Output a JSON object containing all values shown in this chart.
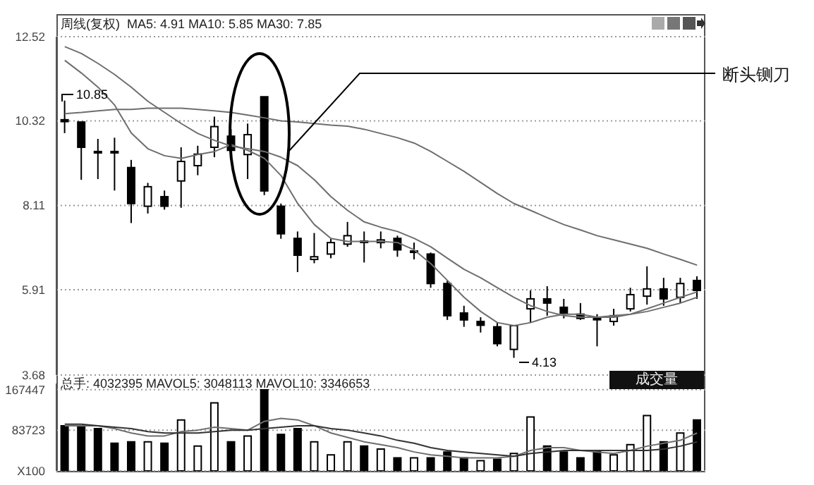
{
  "chart_data": [
    {
      "type": "candlestick",
      "title": "周线(复权)  MA5: 4.91 MA10: 5.85 MA30: 7.85",
      "categories": [
        null,
        null,
        null,
        null,
        null,
        null,
        null,
        null,
        null,
        null,
        null,
        null,
        null,
        null,
        null,
        null,
        null,
        null,
        null,
        null,
        null,
        null,
        null,
        null,
        null,
        null,
        null,
        null,
        null,
        null,
        null,
        null,
        null,
        null,
        null,
        null,
        null,
        null,
        null
      ],
      "ohlc": [
        [
          10.35,
          10.85,
          10.0,
          10.3
        ],
        [
          10.29,
          10.29,
          8.78,
          9.63
        ],
        [
          9.52,
          9.85,
          8.8,
          9.52
        ],
        [
          9.52,
          9.88,
          8.5,
          9.5
        ],
        [
          9.1,
          9.3,
          7.65,
          8.16
        ],
        [
          8.09,
          8.7,
          7.9,
          8.6
        ],
        [
          8.34,
          8.5,
          8.0,
          8.09
        ],
        [
          8.75,
          9.63,
          8.05,
          9.26
        ],
        [
          9.15,
          9.67,
          8.9,
          9.45
        ],
        [
          9.63,
          10.43,
          9.37,
          10.17
        ],
        [
          9.92,
          10.1,
          9.37,
          9.55
        ],
        [
          9.44,
          10.25,
          8.8,
          9.96
        ],
        [
          10.95,
          10.95,
          8.38,
          8.49
        ],
        [
          8.09,
          8.16,
          7.24,
          7.37
        ],
        [
          7.25,
          7.43,
          6.37,
          6.81
        ],
        [
          6.7,
          7.39,
          6.6,
          6.77
        ],
        [
          6.84,
          7.25,
          6.73,
          7.14
        ],
        [
          7.1,
          7.68,
          7.03,
          7.32
        ],
        [
          7.18,
          7.43,
          6.62,
          7.16
        ],
        [
          7.14,
          7.43,
          6.99,
          7.21
        ],
        [
          7.25,
          7.32,
          6.77,
          6.95
        ],
        [
          6.92,
          7.14,
          6.7,
          6.9
        ],
        [
          6.84,
          6.88,
          5.96,
          6.07
        ],
        [
          6.07,
          6.15,
          5.12,
          5.23
        ],
        [
          5.3,
          5.49,
          4.94,
          5.12
        ],
        [
          5.08,
          5.19,
          4.79,
          4.98
        ],
        [
          4.94,
          5.05,
          4.43,
          4.5
        ],
        [
          4.35,
          4.97,
          4.13,
          4.97
        ],
        [
          5.41,
          5.89,
          5.05,
          5.67
        ],
        [
          5.67,
          6.0,
          5.23,
          5.56
        ],
        [
          5.45,
          5.67,
          5.16,
          5.3
        ],
        [
          5.27,
          5.56,
          5.12,
          5.16
        ],
        [
          5.16,
          5.27,
          4.43,
          5.15
        ],
        [
          5.08,
          5.41,
          4.97,
          5.23
        ],
        [
          5.41,
          5.96,
          5.34,
          5.78
        ],
        [
          5.74,
          6.52,
          5.52,
          5.93
        ],
        [
          5.93,
          6.22,
          5.49,
          5.67
        ],
        [
          5.71,
          6.22,
          5.56,
          6.07
        ],
        [
          6.15,
          6.26,
          5.67,
          5.89
        ]
      ],
      "color": "#000000",
      "series": [
        {
          "type": "line",
          "color": "#6e6e6e",
          "values": [
            11.9,
            11.57,
            11.2,
            10.73,
            10.0,
            9.59,
            9.41,
            9.34,
            9.44,
            9.52,
            9.7,
            9.55,
            9.34,
            8.89,
            8.16,
            7.61,
            7.25,
            7.17,
            7.17,
            7.17,
            7.14,
            6.95,
            6.59,
            6.15,
            5.71,
            5.34,
            5.05,
            4.97,
            5.05,
            5.19,
            5.27,
            5.27,
            5.19,
            5.19,
            5.27,
            5.41,
            5.56,
            5.71,
            5.85
          ]
        },
        {
          "type": "line",
          "color": "#6e6e6e",
          "values": [
            12.26,
            12.08,
            11.82,
            11.53,
            11.2,
            10.83,
            10.54,
            10.25,
            9.99,
            9.81,
            9.66,
            9.59,
            9.52,
            9.37,
            9.15,
            8.78,
            8.34,
            7.98,
            7.68,
            7.54,
            7.43,
            7.25,
            7.03,
            6.73,
            6.44,
            6.22,
            5.96,
            5.71,
            5.49,
            5.34,
            5.23,
            5.19,
            5.19,
            5.23,
            5.27,
            5.34,
            5.45,
            5.56,
            5.71
          ]
        },
        {
          "type": "line",
          "color": "#6e6e6e",
          "values": [
            10.51,
            10.54,
            10.58,
            10.62,
            10.62,
            10.65,
            10.65,
            10.65,
            10.62,
            10.58,
            10.54,
            10.47,
            10.4,
            10.32,
            10.29,
            10.25,
            10.21,
            10.18,
            10.1,
            9.99,
            9.88,
            9.74,
            9.52,
            9.26,
            9.0,
            8.71,
            8.42,
            8.16,
            7.98,
            7.79,
            7.61,
            7.47,
            7.32,
            7.21,
            7.1,
            6.99,
            6.84,
            6.7,
            6.55
          ]
        }
      ],
      "ylim": [
        3.68,
        12.52
      ],
      "yticks": [
        12.52,
        10.32,
        8.11,
        5.91,
        3.68
      ],
      "grid": "y",
      "legend": false,
      "marker": "none",
      "tick_labels": "y",
      "annotations": [
        "10.85",
        "4.13",
        "断头铡刀"
      ]
    },
    {
      "type": "bar",
      "title": "总手: 4032395 MAVOL5: 3048113 MAVOL10: 3346653",
      "categories": [
        null,
        null,
        null,
        null,
        null,
        null,
        null,
        null,
        null,
        null,
        null,
        null,
        null,
        null,
        null,
        null,
        null,
        null,
        null,
        null,
        null,
        null,
        null,
        null,
        null,
        null,
        null,
        null,
        null,
        null,
        null,
        null,
        null,
        null,
        null,
        null,
        null,
        null,
        null
      ],
      "series": [
        {
          "type": "bar",
          "colors": [
            "#000000",
            "#000000",
            "#000000",
            "#000000",
            "#000000",
            "#ffffff",
            "#000000",
            "#ffffff",
            "#ffffff",
            "#ffffff",
            "#000000",
            "#ffffff",
            "#000000",
            "#000000",
            "#000000",
            "#ffffff",
            "#ffffff",
            "#ffffff",
            "#000000",
            "#ffffff",
            "#000000",
            "#ffffff",
            "#000000",
            "#000000",
            "#000000",
            "#ffffff",
            "#000000",
            "#ffffff",
            "#ffffff",
            "#000000",
            "#000000",
            "#000000",
            "#000000",
            "#ffffff",
            "#ffffff",
            "#ffffff",
            "#000000",
            "#ffffff",
            "#000000"
          ],
          "values": [
            93000,
            93000,
            87000,
            57000,
            60000,
            60000,
            57000,
            105000,
            51000,
            140000,
            60000,
            72000,
            167000,
            75000,
            87000,
            60000,
            33000,
            60000,
            51000,
            45000,
            27000,
            27000,
            27000,
            39000,
            27000,
            21000,
            24000,
            36000,
            111000,
            51000,
            39000,
            27000,
            42000,
            33000,
            54000,
            114000,
            60000,
            78000,
            105000
          ]
        },
        {
          "type": "line",
          "color": "#6e6e6e",
          "values": [
            93000,
            93000,
            93000,
            87000,
            78000,
            72000,
            72000,
            81000,
            84000,
            90000,
            87000,
            84000,
            102000,
            108000,
            105000,
            93000,
            78000,
            69000,
            60000,
            54000,
            48000,
            39000,
            33000,
            30000,
            27000,
            27000,
            27000,
            30000,
            42000,
            48000,
            48000,
            42000,
            39000,
            36000,
            42000,
            51000,
            57000,
            63000,
            78000
          ]
        },
        {
          "type": "line",
          "color": "#333333",
          "values": [
            96000,
            96000,
            93000,
            90000,
            87000,
            81000,
            78000,
            78000,
            78000,
            81000,
            84000,
            84000,
            87000,
            90000,
            93000,
            93000,
            87000,
            84000,
            78000,
            72000,
            63000,
            57000,
            48000,
            42000,
            39000,
            36000,
            33000,
            30000,
            36000,
            39000,
            42000,
            42000,
            42000,
            42000,
            42000,
            42000,
            45000,
            51000,
            60000
          ]
        }
      ],
      "ylim": [
        0,
        180000
      ],
      "yticks": [
        {
          "value": 0,
          "label": "X100"
        },
        83723,
        167447
      ],
      "grid": "y",
      "legend": false,
      "marker": "none",
      "tick_labels": "y",
      "annotations": [
        "成交量"
      ]
    }
  ]
}
